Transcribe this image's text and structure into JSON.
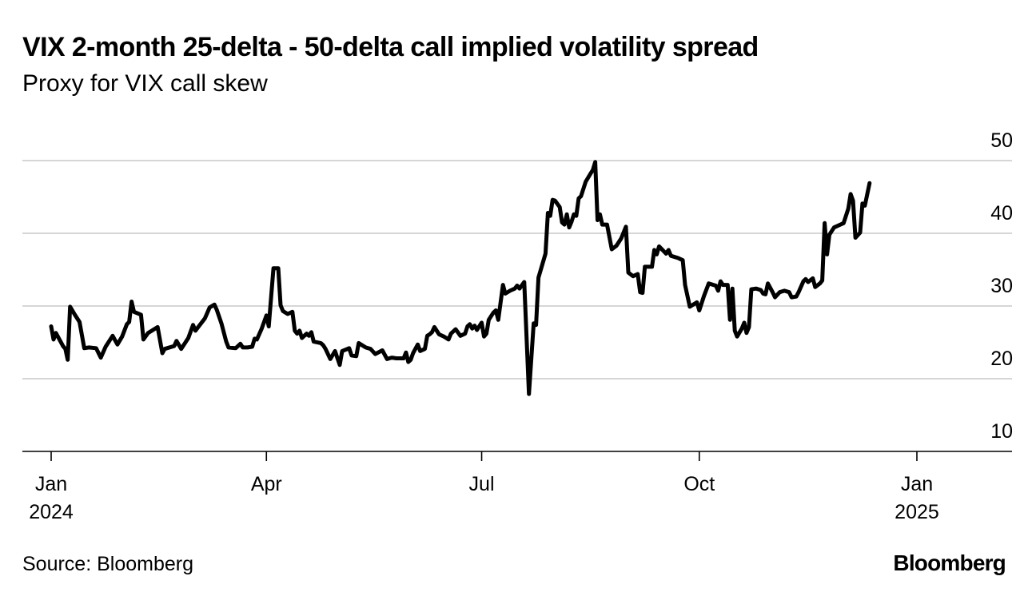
{
  "chart_data": {
    "type": "line",
    "title": "VIX 2-month 25-delta - 50-delta call implied volatility spread",
    "subtitle": "Proxy for VIX call skew",
    "xlabel": "",
    "ylabel": "",
    "ylim": [
      10,
      50
    ],
    "yticks": [
      "50",
      "40",
      "30",
      "20",
      "10"
    ],
    "ytick_values": [
      50,
      40,
      30,
      20,
      10
    ],
    "xticks": [
      {
        "label": "Jan",
        "sub": "2024",
        "day": 0
      },
      {
        "label": "Apr",
        "sub": "",
        "day": 91
      },
      {
        "label": "Jul",
        "sub": "",
        "day": 182
      },
      {
        "label": "Oct",
        "sub": "",
        "day": 274
      },
      {
        "label": "Jan",
        "sub": "2025",
        "day": 366
      }
    ],
    "x_unit": "days since Jan 1, 2024",
    "grid": true,
    "series": [
      {
        "name": "25-delta - 50-delta call IV spread",
        "color": "#000000",
        "points": [
          [
            0,
            27.2
          ],
          [
            1,
            25.4
          ],
          [
            2,
            26.3
          ],
          [
            4,
            25.1
          ],
          [
            5,
            24.5
          ],
          [
            6,
            24.1
          ],
          [
            7,
            22.6
          ],
          [
            8,
            29.9
          ],
          [
            10,
            28.8
          ],
          [
            12,
            27.8
          ],
          [
            14,
            24.2
          ],
          [
            16,
            24.3
          ],
          [
            19,
            24.2
          ],
          [
            21,
            22.9
          ],
          [
            23,
            24.4
          ],
          [
            26,
            25.9
          ],
          [
            28,
            24.7
          ],
          [
            30,
            25.8
          ],
          [
            32,
            27.5
          ],
          [
            33,
            27.8
          ],
          [
            34,
            30.6
          ],
          [
            35,
            29.2
          ],
          [
            38,
            28.8
          ],
          [
            39,
            25.4
          ],
          [
            41,
            26.3
          ],
          [
            45,
            27.1
          ],
          [
            47,
            23.5
          ],
          [
            48,
            24.1
          ],
          [
            52,
            24.5
          ],
          [
            53,
            25.2
          ],
          [
            55,
            24.1
          ],
          [
            58,
            25.6
          ],
          [
            60,
            27.4
          ],
          [
            61,
            26.6
          ],
          [
            65,
            28.3
          ],
          [
            67,
            29.8
          ],
          [
            69,
            30.2
          ],
          [
            70,
            29.5
          ],
          [
            72,
            27.6
          ],
          [
            74,
            25.1
          ],
          [
            75,
            24.3
          ],
          [
            78,
            24.2
          ],
          [
            80,
            24.8
          ],
          [
            81,
            24.3
          ],
          [
            83,
            24.3
          ],
          [
            85,
            24.4
          ],
          [
            86,
            25.5
          ],
          [
            87,
            25.4
          ],
          [
            89,
            26.9
          ],
          [
            91,
            28.7
          ],
          [
            92,
            27.2
          ],
          [
            94,
            35.2
          ],
          [
            96,
            35.2
          ],
          [
            97,
            30.1
          ],
          [
            98,
            29.3
          ],
          [
            100,
            28.9
          ],
          [
            102,
            29.2
          ],
          [
            103,
            26.6
          ],
          [
            104,
            26.2
          ],
          [
            105,
            26.6
          ],
          [
            106,
            25.6
          ],
          [
            108,
            26.2
          ],
          [
            109,
            25.9
          ],
          [
            110,
            26.4
          ],
          [
            111,
            25.1
          ],
          [
            114,
            24.9
          ],
          [
            115,
            24.6
          ],
          [
            116,
            24.1
          ],
          [
            118,
            22.7
          ],
          [
            120,
            23.8
          ],
          [
            122,
            21.9
          ],
          [
            123,
            23.8
          ],
          [
            126,
            24.2
          ],
          [
            127,
            23.2
          ],
          [
            129,
            23.1
          ],
          [
            130,
            24.9
          ],
          [
            133,
            24.3
          ],
          [
            135,
            24.1
          ],
          [
            137,
            23.4
          ],
          [
            140,
            23.9
          ],
          [
            142,
            22.7
          ],
          [
            144,
            22.9
          ],
          [
            146,
            22.8
          ],
          [
            149,
            22.8
          ],
          [
            150,
            23.6
          ],
          [
            151,
            22.3
          ],
          [
            152,
            22.6
          ],
          [
            153,
            23.5
          ],
          [
            155,
            24.7
          ],
          [
            156,
            23.8
          ],
          [
            158,
            24.1
          ],
          [
            159,
            25.9
          ],
          [
            160,
            26.1
          ],
          [
            161,
            26.4
          ],
          [
            162,
            27.1
          ],
          [
            164,
            26.1
          ],
          [
            166,
            25.8
          ],
          [
            167,
            25.6
          ],
          [
            168,
            25.4
          ],
          [
            169,
            26.2
          ],
          [
            171,
            26.8
          ],
          [
            173,
            25.9
          ],
          [
            175,
            26.2
          ],
          [
            176,
            27.2
          ],
          [
            177,
            27.5
          ],
          [
            178,
            26.9
          ],
          [
            179,
            27.3
          ],
          [
            180,
            26.7
          ],
          [
            182,
            27.7
          ],
          [
            183,
            25.8
          ],
          [
            184,
            26.2
          ],
          [
            185,
            28.1
          ],
          [
            187,
            29.1
          ],
          [
            188,
            29.4
          ],
          [
            189,
            28.1
          ],
          [
            191,
            32.9
          ],
          [
            192,
            31.7
          ],
          [
            194,
            32.1
          ],
          [
            196,
            32.4
          ],
          [
            197,
            32.8
          ],
          [
            198,
            32.4
          ],
          [
            200,
            33.3
          ],
          [
            202,
            17.9
          ],
          [
            204,
            27.6
          ],
          [
            205,
            27.4
          ],
          [
            206,
            33.9
          ],
          [
            209,
            37.2
          ],
          [
            210,
            42.8
          ],
          [
            211,
            42.4
          ],
          [
            212,
            44.6
          ],
          [
            213,
            44.5
          ],
          [
            215,
            43.6
          ],
          [
            216,
            41.5
          ],
          [
            217,
            41.2
          ],
          [
            218,
            42.6
          ],
          [
            219,
            40.8
          ],
          [
            220,
            41.6
          ],
          [
            221,
            42.6
          ],
          [
            222,
            42.4
          ],
          [
            223,
            44.8
          ],
          [
            224,
            45.1
          ],
          [
            226,
            47.1
          ],
          [
            228,
            48.2
          ],
          [
            229,
            48.7
          ],
          [
            230,
            49.8
          ],
          [
            231,
            41.8
          ],
          [
            232,
            42.6
          ],
          [
            233,
            41.2
          ],
          [
            235,
            41.2
          ],
          [
            237,
            37.8
          ],
          [
            239,
            38.3
          ],
          [
            241,
            39.3
          ],
          [
            243,
            40.9
          ],
          [
            244,
            34.6
          ],
          [
            246,
            34.1
          ],
          [
            248,
            34.4
          ],
          [
            249,
            31.9
          ],
          [
            250,
            31.8
          ],
          [
            251,
            35.4
          ],
          [
            254,
            35.4
          ],
          [
            255,
            37.7
          ],
          [
            256,
            37.1
          ],
          [
            257,
            38.2
          ],
          [
            260,
            37.2
          ],
          [
            261,
            37.7
          ],
          [
            262,
            36.9
          ],
          [
            265,
            36.6
          ],
          [
            267,
            36.3
          ],
          [
            268,
            32.9
          ],
          [
            270,
            29.9
          ],
          [
            273,
            30.5
          ],
          [
            274,
            29.4
          ],
          [
            276,
            31.4
          ],
          [
            278,
            33.1
          ],
          [
            280,
            32.9
          ],
          [
            281,
            32.8
          ],
          [
            282,
            32.1
          ],
          [
            283,
            33.4
          ],
          [
            284,
            32.9
          ],
          [
            286,
            32.9
          ],
          [
            287,
            28.1
          ],
          [
            288,
            32.4
          ],
          [
            289,
            26.6
          ],
          [
            290,
            25.8
          ],
          [
            292,
            26.9
          ],
          [
            293,
            27.7
          ],
          [
            294,
            26.3
          ],
          [
            295,
            27.1
          ],
          [
            296,
            32.3
          ],
          [
            298,
            32.4
          ],
          [
            300,
            32.2
          ],
          [
            301,
            31.7
          ],
          [
            302,
            31.6
          ],
          [
            303,
            33.1
          ],
          [
            305,
            31.9
          ],
          [
            306,
            31.2
          ],
          [
            308,
            31.9
          ],
          [
            310,
            32.1
          ],
          [
            312,
            31.9
          ],
          [
            313,
            31.2
          ],
          [
            315,
            31.3
          ],
          [
            316,
            31.9
          ],
          [
            318,
            33.4
          ],
          [
            319,
            33.7
          ],
          [
            320,
            33.3
          ],
          [
            322,
            33.8
          ],
          [
            323,
            32.6
          ],
          [
            325,
            33.1
          ],
          [
            326,
            33.5
          ],
          [
            327,
            41.4
          ],
          [
            328,
            37.1
          ],
          [
            329,
            39.8
          ],
          [
            331,
            40.8
          ],
          [
            333,
            41.1
          ],
          [
            335,
            41.4
          ],
          [
            337,
            43.4
          ],
          [
            338,
            45.4
          ],
          [
            339,
            44.5
          ],
          [
            340,
            39.4
          ],
          [
            342,
            40.1
          ],
          [
            343,
            44.1
          ],
          [
            344,
            43.8
          ],
          [
            346,
            46.9
          ]
        ]
      }
    ]
  },
  "source_text": "Source: Bloomberg",
  "logo_text": "Bloomberg"
}
